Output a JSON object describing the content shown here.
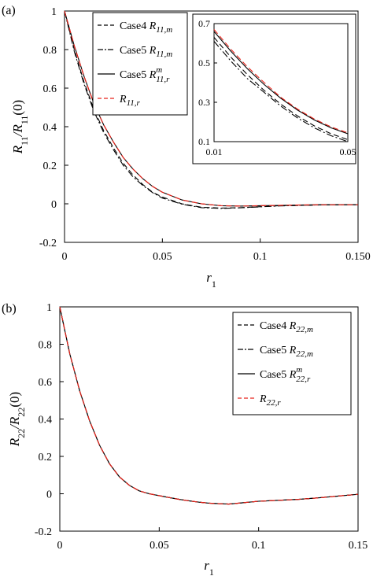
{
  "chart_data": [
    {
      "type": "line",
      "panel_label": "(a)",
      "xlabel": "r",
      "xlabel_sub": "1",
      "ylabel": "R11/R11(0)",
      "ylabel_parts": {
        "num": "R",
        "num_sub": "11",
        "den": "R",
        "den_sub": "11",
        "tail": "(0)"
      },
      "xlim": [
        0,
        0.15
      ],
      "ylim": [
        -0.2,
        1
      ],
      "xticks": [
        0,
        0.05,
        0.1,
        0.15
      ],
      "xtick_labels": [
        "0",
        "0.05",
        "0.1",
        "0.150"
      ],
      "yticks": [
        -0.2,
        0,
        0.2,
        0.4,
        0.6,
        0.8,
        1
      ],
      "ytick_labels": [
        "-0.2",
        "0",
        "0.2",
        "0.4",
        "0.6",
        "0.8",
        "1"
      ],
      "grid": false,
      "legend_position": "top-left",
      "x": [
        0,
        0.005,
        0.01,
        0.015,
        0.02,
        0.025,
        0.03,
        0.035,
        0.04,
        0.045,
        0.05,
        0.06,
        0.07,
        0.08,
        0.09,
        0.1,
        0.11,
        0.12,
        0.13,
        0.14,
        0.15
      ],
      "series": [
        {
          "name": "Case4 R11,m",
          "legend": {
            "prefix": "Case4 ",
            "base": "R",
            "sub": "11,m",
            "sup": ""
          },
          "style": "dashed",
          "color": "#000000",
          "values": [
            1.0,
            0.8,
            0.63,
            0.49,
            0.38,
            0.29,
            0.21,
            0.15,
            0.1,
            0.06,
            0.035,
            0.0,
            -0.018,
            -0.022,
            -0.02,
            -0.015,
            -0.01,
            -0.008,
            -0.006,
            -0.005,
            -0.004
          ]
        },
        {
          "name": "Case5 R11,m",
          "legend": {
            "prefix": "Case5 ",
            "base": "R",
            "sub": "11,m",
            "sup": ""
          },
          "style": "dashdot",
          "color": "#000000",
          "values": [
            1.0,
            0.79,
            0.62,
            0.48,
            0.37,
            0.28,
            0.2,
            0.14,
            0.095,
            0.058,
            0.03,
            -0.002,
            -0.02,
            -0.024,
            -0.021,
            -0.016,
            -0.011,
            -0.008,
            -0.006,
            -0.005,
            -0.004
          ]
        },
        {
          "name": "Case5 R11,r^m",
          "legend": {
            "prefix": "Case5 ",
            "base": "R",
            "sub": "11,r",
            "sup": "m"
          },
          "style": "solid",
          "color": "#000000",
          "values": [
            1.0,
            0.82,
            0.66,
            0.52,
            0.41,
            0.32,
            0.24,
            0.18,
            0.13,
            0.09,
            0.06,
            0.02,
            0.0,
            -0.01,
            -0.012,
            -0.01,
            -0.008,
            -0.006,
            -0.005,
            -0.005,
            -0.005
          ]
        },
        {
          "name": "R11,r",
          "legend": {
            "prefix": "",
            "base": "R",
            "sub": "11,r",
            "sup": ""
          },
          "style": "dashed",
          "color": "#e8231a",
          "values": [
            1.0,
            0.82,
            0.66,
            0.52,
            0.41,
            0.32,
            0.24,
            0.18,
            0.13,
            0.09,
            0.06,
            0.02,
            0.0,
            -0.01,
            -0.012,
            -0.01,
            -0.008,
            -0.006,
            -0.005,
            -0.005,
            -0.005
          ]
        }
      ],
      "inset": {
        "xlim": [
          0.01,
          0.05
        ],
        "ylim": [
          0.1,
          0.7
        ],
        "xticks": [
          0.01,
          0.05
        ],
        "xtick_labels": [
          "0.01",
          "0.05"
        ],
        "yticks": [
          0.1,
          0.3,
          0.5,
          0.7
        ],
        "ytick_labels": [
          "0.1",
          "0.3",
          "0.5",
          "0.7"
        ],
        "x": [
          0.01,
          0.015,
          0.02,
          0.025,
          0.03,
          0.035,
          0.04,
          0.045,
          0.05
        ],
        "series": [
          {
            "name": "Case4 R11,m",
            "style": "dashed",
            "color": "#000000",
            "values": [
              0.63,
              0.53,
              0.44,
              0.36,
              0.29,
              0.23,
              0.18,
              0.14,
              0.11
            ]
          },
          {
            "name": "Case5 R11,m",
            "style": "dashdot",
            "color": "#000000",
            "values": [
              0.61,
              0.51,
              0.42,
              0.35,
              0.28,
              0.22,
              0.17,
              0.13,
              0.1
            ]
          },
          {
            "name": "Case5 R11,r^m",
            "style": "solid",
            "color": "#000000",
            "values": [
              0.66,
              0.56,
              0.47,
              0.39,
              0.32,
              0.26,
              0.21,
              0.17,
              0.14
            ]
          },
          {
            "name": "R11,r",
            "style": "dashed",
            "color": "#e8231a",
            "values": [
              0.67,
              0.57,
              0.48,
              0.4,
              0.325,
              0.265,
              0.215,
              0.175,
              0.145
            ]
          }
        ]
      }
    },
    {
      "type": "line",
      "panel_label": "(b)",
      "xlabel": "r",
      "xlabel_sub": "1",
      "ylabel": "R22/R22(0)",
      "ylabel_parts": {
        "num": "R",
        "num_sub": "22",
        "den": "R",
        "den_sub": "22",
        "tail": "(0)"
      },
      "xlim": [
        0,
        0.15
      ],
      "ylim": [
        -0.2,
        1
      ],
      "xticks": [
        0,
        0.05,
        0.1,
        0.15
      ],
      "xtick_labels": [
        "0",
        "0.05",
        "0.1",
        "0.15"
      ],
      "yticks": [
        -0.2,
        0,
        0.2,
        0.4,
        0.6,
        0.8,
        1
      ],
      "ytick_labels": [
        "-0.2",
        "0",
        "0.2",
        "0.4",
        "0.6",
        "0.8",
        "1"
      ],
      "grid": false,
      "legend_position": "top-right",
      "x": [
        0,
        0.005,
        0.01,
        0.015,
        0.02,
        0.025,
        0.03,
        0.035,
        0.04,
        0.045,
        0.05,
        0.055,
        0.06,
        0.065,
        0.07,
        0.075,
        0.08,
        0.085,
        0.09,
        0.1,
        0.11,
        0.12,
        0.13,
        0.14,
        0.15
      ],
      "series": [
        {
          "name": "Case4 R22,m",
          "legend": {
            "prefix": "Case4 ",
            "base": "R",
            "sub": "22,m",
            "sup": ""
          },
          "style": "dashed",
          "color": "#000000",
          "values": [
            1.0,
            0.75,
            0.55,
            0.39,
            0.26,
            0.16,
            0.09,
            0.045,
            0.015,
            0.0,
            -0.01,
            -0.02,
            -0.03,
            -0.038,
            -0.045,
            -0.05,
            -0.053,
            -0.055,
            -0.05,
            -0.04,
            -0.035,
            -0.03,
            -0.022,
            -0.012,
            -0.003
          ]
        },
        {
          "name": "Case5 R22,m",
          "legend": {
            "prefix": "Case5 ",
            "base": "R",
            "sub": "22,m",
            "sup": ""
          },
          "style": "dashdot",
          "color": "#000000",
          "values": [
            1.0,
            0.75,
            0.55,
            0.39,
            0.26,
            0.16,
            0.09,
            0.045,
            0.015,
            0.0,
            -0.01,
            -0.02,
            -0.03,
            -0.038,
            -0.045,
            -0.05,
            -0.053,
            -0.055,
            -0.05,
            -0.04,
            -0.035,
            -0.03,
            -0.022,
            -0.012,
            -0.003
          ]
        },
        {
          "name": "Case5 R22,r^m",
          "legend": {
            "prefix": "Case5 ",
            "base": "R",
            "sub": "22,r",
            "sup": "m"
          },
          "style": "solid",
          "color": "#000000",
          "values": [
            1.0,
            0.75,
            0.55,
            0.39,
            0.26,
            0.16,
            0.09,
            0.045,
            0.015,
            0.0,
            -0.01,
            -0.02,
            -0.03,
            -0.038,
            -0.045,
            -0.05,
            -0.053,
            -0.055,
            -0.05,
            -0.04,
            -0.035,
            -0.03,
            -0.022,
            -0.012,
            -0.003
          ]
        },
        {
          "name": "R22,r",
          "legend": {
            "prefix": "",
            "base": "R",
            "sub": "22,r",
            "sup": ""
          },
          "style": "dashed",
          "color": "#e8231a",
          "values": [
            1.0,
            0.75,
            0.55,
            0.39,
            0.26,
            0.16,
            0.09,
            0.045,
            0.015,
            0.0,
            -0.01,
            -0.02,
            -0.03,
            -0.038,
            -0.045,
            -0.05,
            -0.053,
            -0.055,
            -0.05,
            -0.04,
            -0.035,
            -0.03,
            -0.022,
            -0.012,
            -0.003
          ]
        }
      ]
    }
  ]
}
